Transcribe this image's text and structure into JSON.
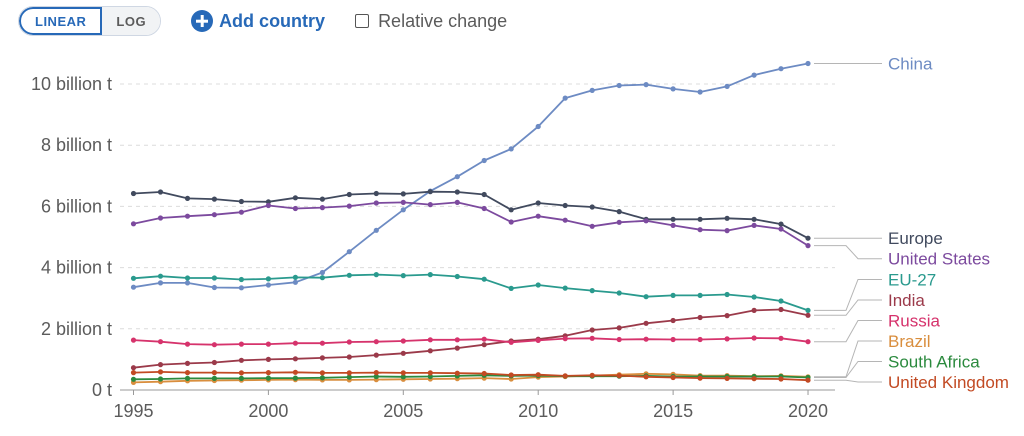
{
  "controls": {
    "linear_label": "LINEAR",
    "log_label": "LOG",
    "add_country_label": "Add country",
    "relative_change_label": "Relative change"
  },
  "chart_data": {
    "type": "line",
    "title": "",
    "xlabel": "",
    "ylabel": "",
    "xlim": [
      1994.5,
      2021
    ],
    "ylim": [
      0,
      10.5
    ],
    "y_unit": "billion t",
    "y_ticks": [
      {
        "value": 0,
        "label": "0 t"
      },
      {
        "value": 2,
        "label": "2 billion t"
      },
      {
        "value": 4,
        "label": "4 billion t"
      },
      {
        "value": 6,
        "label": "6 billion t"
      },
      {
        "value": 8,
        "label": "8 billion t"
      },
      {
        "value": 10,
        "label": "10 billion t"
      }
    ],
    "x_ticks": [
      1995,
      2000,
      2005,
      2010,
      2015,
      2020
    ],
    "grid": "horizontal dashed",
    "legend": "line labels at right end",
    "x": [
      1995,
      1996,
      1997,
      1998,
      1999,
      2000,
      2001,
      2002,
      2003,
      2004,
      2005,
      2006,
      2007,
      2008,
      2009,
      2010,
      2011,
      2012,
      2013,
      2014,
      2015,
      2016,
      2017,
      2018,
      2019,
      2020,
      2021
    ],
    "series": [
      {
        "name": "China",
        "color": "#6d8bc3",
        "values": [
          3.36,
          3.5,
          3.5,
          3.35,
          3.34,
          3.43,
          3.52,
          3.84,
          4.52,
          5.22,
          5.89,
          6.5,
          6.97,
          7.5,
          7.88,
          8.61,
          9.54,
          9.79,
          9.95,
          9.98,
          9.84,
          9.74,
          9.92,
          10.29,
          10.5,
          10.67,
          null
        ]
      },
      {
        "name": "Europe",
        "color": "#414a5e",
        "values": [
          6.42,
          6.47,
          6.26,
          6.24,
          6.16,
          6.15,
          6.28,
          6.24,
          6.39,
          6.42,
          6.41,
          6.48,
          6.47,
          6.39,
          5.89,
          6.11,
          6.03,
          5.98,
          5.83,
          5.58,
          5.58,
          5.58,
          5.61,
          5.58,
          5.42,
          4.96,
          null
        ]
      },
      {
        "name": "United States",
        "color": "#7c4a9e",
        "values": [
          5.43,
          5.62,
          5.68,
          5.73,
          5.81,
          6.03,
          5.93,
          5.96,
          6.01,
          6.11,
          6.13,
          6.06,
          6.13,
          5.93,
          5.49,
          5.68,
          5.55,
          5.35,
          5.48,
          5.53,
          5.38,
          5.24,
          5.21,
          5.38,
          5.26,
          4.72,
          null
        ]
      },
      {
        "name": "EU-27",
        "color": "#2a9a8e",
        "values": [
          3.65,
          3.72,
          3.66,
          3.66,
          3.61,
          3.63,
          3.68,
          3.67,
          3.75,
          3.77,
          3.74,
          3.77,
          3.71,
          3.62,
          3.32,
          3.43,
          3.33,
          3.25,
          3.17,
          3.05,
          3.09,
          3.09,
          3.12,
          3.04,
          2.91,
          2.6,
          null
        ]
      },
      {
        "name": "India",
        "color": "#9b3a4a",
        "values": [
          0.73,
          0.83,
          0.87,
          0.9,
          0.97,
          1.0,
          1.02,
          1.05,
          1.08,
          1.14,
          1.2,
          1.28,
          1.37,
          1.48,
          1.6,
          1.66,
          1.77,
          1.96,
          2.03,
          2.18,
          2.27,
          2.37,
          2.43,
          2.6,
          2.63,
          2.44,
          null
        ]
      },
      {
        "name": "Russia",
        "color": "#d6336c",
        "values": [
          1.63,
          1.58,
          1.5,
          1.48,
          1.5,
          1.5,
          1.53,
          1.53,
          1.57,
          1.58,
          1.6,
          1.64,
          1.64,
          1.66,
          1.56,
          1.62,
          1.68,
          1.69,
          1.65,
          1.66,
          1.65,
          1.65,
          1.67,
          1.7,
          1.69,
          1.58,
          null
        ]
      },
      {
        "name": "Brazil",
        "color": "#d98e3e",
        "values": [
          0.25,
          0.27,
          0.3,
          0.31,
          0.32,
          0.33,
          0.34,
          0.33,
          0.33,
          0.34,
          0.35,
          0.36,
          0.37,
          0.39,
          0.36,
          0.42,
          0.44,
          0.47,
          0.5,
          0.53,
          0.51,
          0.47,
          0.47,
          0.45,
          0.46,
          0.43,
          null
        ]
      },
      {
        "name": "South Africa",
        "color": "#2b8a3e",
        "values": [
          0.35,
          0.36,
          0.38,
          0.38,
          0.38,
          0.39,
          0.39,
          0.4,
          0.42,
          0.44,
          0.43,
          0.44,
          0.46,
          0.48,
          0.46,
          0.47,
          0.45,
          0.45,
          0.45,
          0.46,
          0.44,
          0.44,
          0.44,
          0.44,
          0.44,
          0.41,
          null
        ]
      },
      {
        "name": "United Kingdom",
        "color": "#c24a23",
        "values": [
          0.57,
          0.59,
          0.57,
          0.57,
          0.56,
          0.57,
          0.58,
          0.56,
          0.56,
          0.57,
          0.56,
          0.56,
          0.55,
          0.54,
          0.49,
          0.5,
          0.46,
          0.48,
          0.47,
          0.43,
          0.41,
          0.39,
          0.38,
          0.37,
          0.36,
          0.32,
          null
        ]
      }
    ]
  }
}
